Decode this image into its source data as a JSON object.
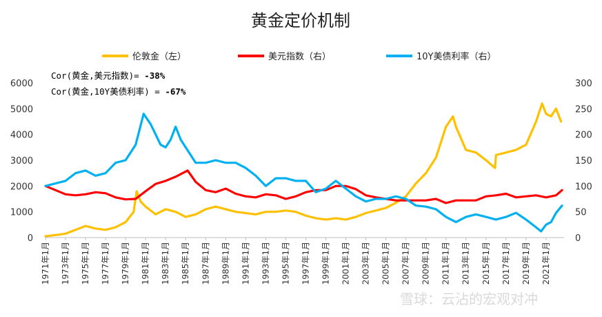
{
  "watermark": "雪球：云沾的宏观对冲",
  "chart_data": {
    "type": "line",
    "title": "黄金定价机制",
    "legend_position": "top",
    "grid": false,
    "annotations": [
      {
        "prefix": "Cor(黄金,美元指数)= ",
        "value": "-38%"
      },
      {
        "prefix": "Cor(黄金,10Y美债利率) = ",
        "value": "-67%"
      }
    ],
    "y_left": {
      "ylim": [
        0,
        6000
      ],
      "ticks": [
        "0",
        "1000",
        "2000",
        "3000",
        "4000",
        "5000",
        "6000"
      ]
    },
    "y_right": {
      "ylim": [
        0,
        300
      ],
      "ticks": [
        "0",
        "50",
        "100",
        "150",
        "200",
        "250",
        "300"
      ]
    },
    "x_ticks": [
      "1971年1月",
      "1973年1月",
      "1975年1月",
      "1977年1月",
      "1979年1月",
      "1981年1月",
      "1983年1月",
      "1985年1月",
      "1987年1月",
      "1989年1月",
      "1991年1月",
      "1993年1月",
      "1995年1月",
      "1997年1月",
      "1999年1月",
      "2001年1月",
      "2003年1月",
      "2005年1月",
      "2007年1月",
      "2009年1月",
      "2011年1月",
      "2013年1月",
      "2015年1月",
      "2017年1月",
      "2019年1月",
      "2021年1月"
    ],
    "x_range": [
      1971.0,
      2022.8
    ],
    "series": [
      {
        "name": "伦敦金（左）",
        "axis": "left",
        "color": "#FFC000",
        "x": [
          1971,
          1972,
          1973,
          1974,
          1975,
          1976,
          1977,
          1978,
          1979,
          1979.8,
          1980.1,
          1980.5,
          1981,
          1982,
          1982.5,
          1983,
          1984,
          1985,
          1986,
          1987,
          1988,
          1989,
          1990,
          1991,
          1992,
          1993,
          1994,
          1995,
          1996,
          1997,
          1998,
          1999,
          2000,
          2001,
          2002,
          2003,
          2004,
          2005,
          2006,
          2007,
          2008,
          2009,
          2010,
          2011,
          2011.7,
          2012,
          2013,
          2014,
          2015,
          2015.9,
          2016,
          2017,
          2018,
          2019,
          2020,
          2020.6,
          2021,
          2021.5,
          2022,
          2022.5
        ],
        "y": [
          50,
          100,
          150,
          300,
          450,
          350,
          300,
          400,
          600,
          1000,
          1800,
          1400,
          1200,
          900,
          1000,
          1100,
          1000,
          800,
          900,
          1100,
          1200,
          1100,
          1000,
          950,
          900,
          1000,
          1000,
          1050,
          1000,
          850,
          750,
          700,
          750,
          700,
          800,
          950,
          1050,
          1150,
          1350,
          1600,
          2100,
          2500,
          3100,
          4300,
          4700,
          4300,
          3400,
          3300,
          3000,
          2700,
          3200,
          3300,
          3400,
          3600,
          4500,
          5200,
          4800,
          4700,
          5000,
          4500
        ]
      },
      {
        "name": "美元指数（右）",
        "axis": "right",
        "color": "#FF0000",
        "x": [
          1971,
          1972,
          1973,
          1974,
          1975,
          1976,
          1977,
          1978,
          1979,
          1980,
          1981,
          1982,
          1983,
          1984,
          1985.2,
          1986,
          1987,
          1988,
          1989,
          1990,
          1991,
          1992,
          1993,
          1994,
          1995,
          1996,
          1997,
          1998,
          1999,
          2000,
          2001,
          2002,
          2003,
          2004,
          2005,
          2006,
          2007,
          2008,
          2009,
          2010,
          2011,
          2012,
          2013,
          2014,
          2015,
          2016,
          2017,
          2018,
          2019,
          2020,
          2021,
          2022,
          2022.6
        ],
        "y": [
          100,
          92,
          84,
          82,
          84,
          88,
          86,
          78,
          74,
          75,
          90,
          104,
          110,
          118,
          130,
          108,
          92,
          88,
          95,
          85,
          80,
          78,
          84,
          82,
          75,
          80,
          88,
          92,
          92,
          100,
          100,
          94,
          82,
          78,
          75,
          72,
          72,
          72,
          72,
          75,
          67,
          72,
          72,
          72,
          80,
          82,
          85,
          78,
          80,
          82,
          78,
          82,
          92
        ]
      },
      {
        "name": "10Y美债利率（右）",
        "axis": "right",
        "color": "#00B0F0",
        "x": [
          1971,
          1972,
          1973,
          1974,
          1975,
          1976,
          1977,
          1978,
          1979,
          1980,
          1980.8,
          1981.5,
          1982,
          1982.5,
          1983,
          1983.5,
          1984,
          1984.5,
          1985,
          1986,
          1987,
          1988,
          1989,
          1990,
          1991,
          1992,
          1993,
          1994,
          1995,
          1996,
          1997,
          1998,
          1999,
          2000,
          2001,
          2002,
          2003,
          2004,
          2005,
          2006,
          2007,
          2008,
          2009,
          2010,
          2011,
          2012,
          2013,
          2014,
          2015,
          2016,
          2017,
          2018,
          2019,
          2020,
          2020.5,
          2021,
          2021.5,
          2022,
          2022.6
        ],
        "y": [
          100,
          105,
          110,
          125,
          130,
          120,
          125,
          145,
          150,
          180,
          240,
          220,
          200,
          180,
          175,
          190,
          215,
          190,
          175,
          145,
          145,
          150,
          145,
          145,
          135,
          120,
          100,
          115,
          115,
          110,
          110,
          88,
          95,
          110,
          95,
          80,
          70,
          75,
          75,
          80,
          75,
          62,
          60,
          55,
          40,
          30,
          40,
          45,
          40,
          35,
          40,
          48,
          35,
          20,
          12,
          25,
          30,
          48,
          62
        ]
      }
    ]
  }
}
